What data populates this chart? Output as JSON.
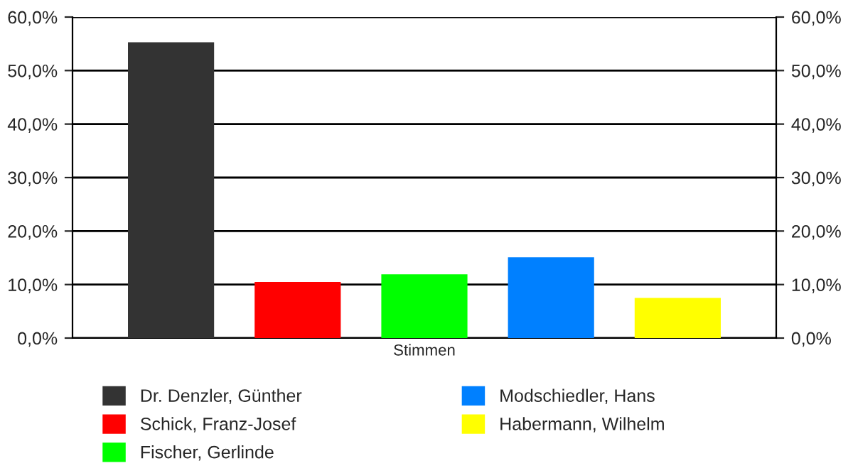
{
  "chart_data": {
    "type": "bar",
    "categories": [
      "Stimmen"
    ],
    "series": [
      {
        "name": "Dr. Denzler, Günther",
        "color": "#333333",
        "values": [
          55.3
        ]
      },
      {
        "name": "Schick, Franz-Josef",
        "color": "#ff0000",
        "values": [
          10.5
        ]
      },
      {
        "name": "Fischer, Gerlinde",
        "color": "#00ff00",
        "values": [
          11.9
        ]
      },
      {
        "name": "Modschiedler, Hans",
        "color": "#0080ff",
        "values": [
          15.1
        ]
      },
      {
        "name": "Habermann, Wilhelm",
        "color": "#ffff00",
        "values": [
          7.5
        ]
      }
    ],
    "ylim": [
      0,
      60
    ],
    "yticks": [
      {
        "value": 0,
        "label": "0,0%"
      },
      {
        "value": 10,
        "label": "10,0%"
      },
      {
        "value": 20,
        "label": "20,0%"
      },
      {
        "value": 30,
        "label": "30,0%"
      },
      {
        "value": 40,
        "label": "40,0%"
      },
      {
        "value": 50,
        "label": "50,0%"
      },
      {
        "value": 60,
        "label": "60,0%"
      }
    ],
    "grid": "y",
    "legend": "bottom"
  }
}
